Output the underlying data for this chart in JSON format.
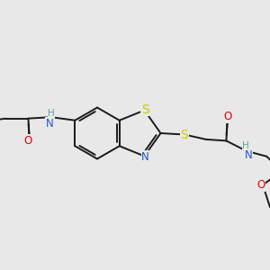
{
  "bg_color": "#e8e8e8",
  "bond_color": "#1a1a1a",
  "line_width": 1.4,
  "atom_colors": {
    "N": "#2255cc",
    "O": "#dd0000",
    "S_ring": "#cccc00",
    "S_link": "#cccc00",
    "H": "#5f9ea0",
    "C": "#1a1a1a"
  },
  "font_size": 8.5,
  "font_size_h": 7.5
}
